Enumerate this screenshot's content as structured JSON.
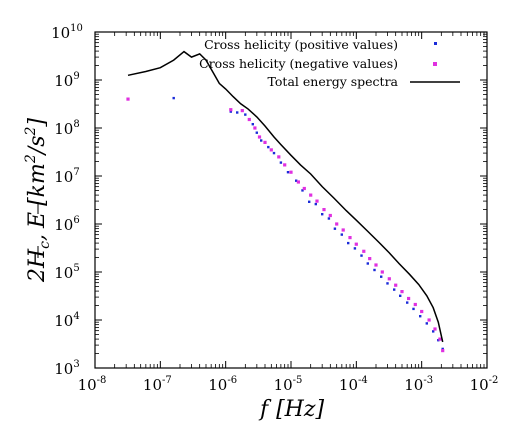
{
  "chart_data": {
    "type": "scatter",
    "xscale": "log",
    "yscale": "log",
    "xlim": [
      1e-08,
      0.01
    ],
    "ylim": [
      1000.0,
      10000000000.0
    ],
    "x_tick_exponents": [
      "-8",
      "-7",
      "-6",
      "-5",
      "-4",
      "-3",
      "-2"
    ],
    "y_tick_exponents": [
      "3",
      "4",
      "5",
      "6",
      "7",
      "8",
      "9",
      "10"
    ],
    "tick_base": "10",
    "xlabel": {
      "var": "f",
      "unit": "[Hz]"
    },
    "ylabel": {
      "prefix": "2",
      "var1": "H",
      "sub1": "c",
      "sep": ",",
      "var2": "E",
      "unit_open": "[km",
      "unit_exp1": "2",
      "unit_mid": "/s",
      "unit_exp2": "2",
      "unit_close": "]"
    },
    "legend_position": "top-right",
    "series": [
      {
        "name": "Cross helicity (positive values)",
        "kind": "points",
        "color": "#1a2bd8",
        "points": [
          [
            1.6e-07,
            420000000.0
          ],
          [
            1.2e-06,
            220000000.0
          ],
          [
            1.5e-06,
            210000000.0
          ],
          [
            2e-06,
            190000000.0
          ],
          [
            2.6e-06,
            120000000.0
          ],
          [
            3e-06,
            80000000.0
          ],
          [
            3.5e-06,
            55000000.0
          ],
          [
            4.5e-06,
            40000000.0
          ],
          [
            5.5e-06,
            30000000.0
          ],
          [
            7e-06,
            19000000.0
          ],
          [
            9e-06,
            12000000.0
          ],
          [
            1.2e-05,
            8000000.0
          ],
          [
            1.5e-05,
            5000000.0
          ],
          [
            1.9e-05,
            2900000.0
          ],
          [
            2.4e-05,
            2600000.0
          ],
          [
            3e-05,
            1600000.0
          ],
          [
            3.8e-05,
            1300000.0
          ],
          [
            4.7e-05,
            800000.0
          ],
          [
            6e-05,
            600000.0
          ],
          [
            7.5e-05,
            400000.0
          ],
          [
            9.5e-05,
            310000.0
          ],
          [
            0.00012,
            220000.0
          ],
          [
            0.00015,
            150000.0
          ],
          [
            0.00019,
            110000.0
          ],
          [
            0.00024,
            80000.0
          ],
          [
            0.0003,
            58000.0
          ],
          [
            0.00038,
            43000.0
          ],
          [
            0.00047,
            32000.0
          ],
          [
            0.0006,
            23000.0
          ],
          [
            0.00075,
            17000.0
          ],
          [
            0.00095,
            12000.0
          ],
          [
            0.0012,
            8500.0
          ],
          [
            0.0015,
            5800.0
          ],
          [
            0.0018,
            3800.0
          ],
          [
            0.0021,
            2500.0
          ]
        ]
      },
      {
        "name": "Cross helicity (negative values)",
        "kind": "points",
        "color": "#e030e0",
        "points": [
          [
            3.2e-08,
            400000000.0
          ],
          [
            1.2e-06,
            240000000.0
          ],
          [
            1.8e-06,
            230000000.0
          ],
          [
            2.3e-06,
            150000000.0
          ],
          [
            2.8e-06,
            100000000.0
          ],
          [
            3.3e-06,
            65000000.0
          ],
          [
            4e-06,
            50000000.0
          ],
          [
            5e-06,
            35000000.0
          ],
          [
            6.5e-06,
            25000000.0
          ],
          [
            8e-06,
            17000000.0
          ],
          [
            1e-05,
            12000000.0
          ],
          [
            1.3e-05,
            7500000.0
          ],
          [
            1.6e-05,
            5500000.0
          ],
          [
            2e-05,
            4000000.0
          ],
          [
            2.5e-05,
            3000000.0
          ],
          [
            3.2e-05,
            2000000.0
          ],
          [
            4e-05,
            1500000.0
          ],
          [
            5e-05,
            1000000.0
          ],
          [
            6.3e-05,
            750000.0
          ],
          [
            8e-05,
            520000.0
          ],
          [
            0.0001,
            380000.0
          ],
          [
            0.00013,
            270000.0
          ],
          [
            0.00016,
            190000.0
          ],
          [
            0.0002,
            140000.0
          ],
          [
            0.00025,
            100000.0
          ],
          [
            0.00032,
            72000.0
          ],
          [
            0.0004,
            53000.0
          ],
          [
            0.0005,
            39000.0
          ],
          [
            0.00063,
            28000.0
          ],
          [
            0.0008,
            21000.0
          ],
          [
            0.001,
            15000.0
          ],
          [
            0.0013,
            10000.0
          ],
          [
            0.0016,
            6500.0
          ],
          [
            0.0019,
            4000.0
          ],
          [
            0.0021,
            2300.0
          ]
        ]
      },
      {
        "name": "Total energy spectra",
        "kind": "line",
        "color": "#000000",
        "points": [
          [
            3.2e-08,
            1250000000.0
          ],
          [
            6e-08,
            1500000000.0
          ],
          [
            1e-07,
            1800000000.0
          ],
          [
            1.6e-07,
            2600000000.0
          ],
          [
            2.3e-07,
            3900000000.0
          ],
          [
            3e-07,
            3000000000.0
          ],
          [
            4e-07,
            3500000000.0
          ],
          [
            5e-07,
            2600000000.0
          ],
          [
            6.5e-07,
            1400000000.0
          ],
          [
            8e-07,
            850000000.0
          ],
          [
            1e-06,
            650000000.0
          ],
          [
            1.3e-06,
            450000000.0
          ],
          [
            1.7e-06,
            320000000.0
          ],
          [
            2.2e-06,
            250000000.0
          ],
          [
            3e-06,
            170000000.0
          ],
          [
            4e-06,
            110000000.0
          ],
          [
            5.5e-06,
            65000000.0
          ],
          [
            7e-06,
            45000000.0
          ],
          [
            1e-05,
            27000000.0
          ],
          [
            1.4e-05,
            17000000.0
          ],
          [
            2e-05,
            11000000.0
          ],
          [
            3e-05,
            6000000.0
          ],
          [
            4.5e-05,
            3500000.0
          ],
          [
            7e-05,
            1900000.0
          ],
          [
            0.0001,
            1200000.0
          ],
          [
            0.00015,
            700000.0
          ],
          [
            0.00022,
            420000.0
          ],
          [
            0.00032,
            250000.0
          ],
          [
            0.00045,
            150000.0
          ],
          [
            0.00065,
            90000.0
          ],
          [
            0.0009,
            55000.0
          ],
          [
            0.0012,
            32000.0
          ],
          [
            0.0015,
            18000.0
          ],
          [
            0.0018,
            9000.0
          ],
          [
            0.0021,
            3500.0
          ]
        ]
      }
    ]
  }
}
